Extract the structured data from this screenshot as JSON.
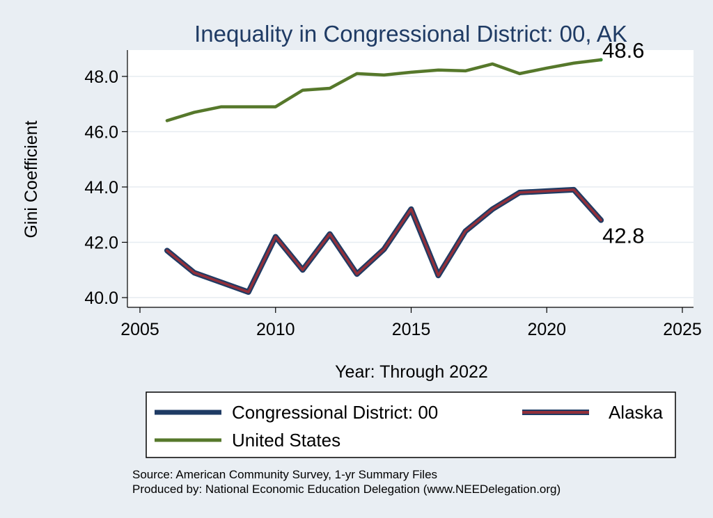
{
  "chart_data": {
    "type": "line",
    "title": "Inequality in Congressional District:  00, AK",
    "xlabel": "Year: Through 2022",
    "ylabel": "Gini Coefficient",
    "xlim": [
      2005,
      2025
    ],
    "ylim": [
      40.0,
      48.6
    ],
    "x_ticks": [
      {
        "value": 2005,
        "label": "2005"
      },
      {
        "value": 2010,
        "label": "2010"
      },
      {
        "value": 2015,
        "label": "2015"
      },
      {
        "value": 2020,
        "label": "2020"
      },
      {
        "value": 2025,
        "label": "2025"
      }
    ],
    "y_ticks": [
      {
        "value": 40,
        "label": "40.0"
      },
      {
        "value": 42,
        "label": "42.0"
      },
      {
        "value": 44,
        "label": "44.0"
      },
      {
        "value": 46,
        "label": "46.0"
      },
      {
        "value": 48,
        "label": "48.0"
      }
    ],
    "grid": true,
    "legend_position": "bottom",
    "x": [
      2006,
      2007,
      2008,
      2009,
      2010,
      2011,
      2012,
      2013,
      2014,
      2015,
      2016,
      2017,
      2018,
      2019,
      2020,
      2021,
      2022
    ],
    "series": [
      {
        "name": "Congressional District:  00",
        "color": "#1f3b64",
        "values": [
          41.7,
          40.9,
          40.55,
          40.2,
          42.2,
          41.0,
          42.3,
          40.85,
          41.75,
          43.2,
          40.8,
          42.4,
          43.2,
          43.8,
          43.85,
          43.9,
          42.8
        ]
      },
      {
        "name": "Alaska",
        "color": "#922f3a",
        "values": [
          41.7,
          40.9,
          40.55,
          40.2,
          42.2,
          41.0,
          42.3,
          40.85,
          41.75,
          43.2,
          40.8,
          42.4,
          43.2,
          43.8,
          43.85,
          43.9,
          42.8
        ]
      },
      {
        "name": "United States",
        "color": "#56782b",
        "values": [
          46.4,
          46.7,
          46.9,
          46.9,
          46.9,
          47.5,
          47.57,
          48.1,
          48.05,
          48.15,
          48.23,
          48.2,
          48.45,
          48.1,
          48.3,
          48.48,
          48.6
        ]
      }
    ],
    "end_labels": [
      {
        "series": "United States",
        "text": "48.6"
      },
      {
        "series": "Alaska",
        "text": "42.8"
      }
    ]
  },
  "source_lines": [
    "Source: American Community Survey, 1-yr Summary Files",
    "Produced by: National Economic Education Delegation (www.NEEDelegation.org)"
  ]
}
